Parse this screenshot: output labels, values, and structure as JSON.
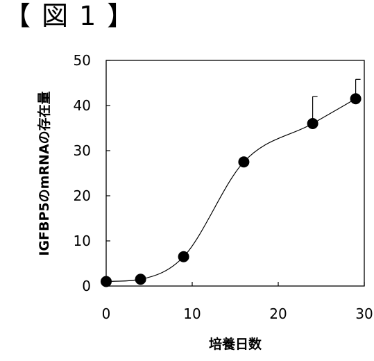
{
  "figure_label": "【 図 1 】",
  "chart_data": {
    "type": "scatter",
    "title": "",
    "xlabel": "培養日数",
    "ylabel": "IGFBP5のmRNAの存在量",
    "xlim": [
      0,
      30
    ],
    "ylim": [
      0,
      50
    ],
    "x_ticks": [
      0,
      10,
      20,
      30
    ],
    "y_ticks": [
      0,
      10,
      20,
      30,
      40,
      50
    ],
    "grid": false,
    "legend": "none",
    "series": [
      {
        "x": [
          0,
          4,
          9,
          16,
          24,
          29
        ],
        "y": [
          1.0,
          1.5,
          6.5,
          27.5,
          36.0,
          41.5
        ],
        "error_plus": [
          0,
          0,
          0,
          0,
          6.0,
          4.3
        ],
        "marker": "filled-circle",
        "smooth_line": true
      }
    ]
  }
}
